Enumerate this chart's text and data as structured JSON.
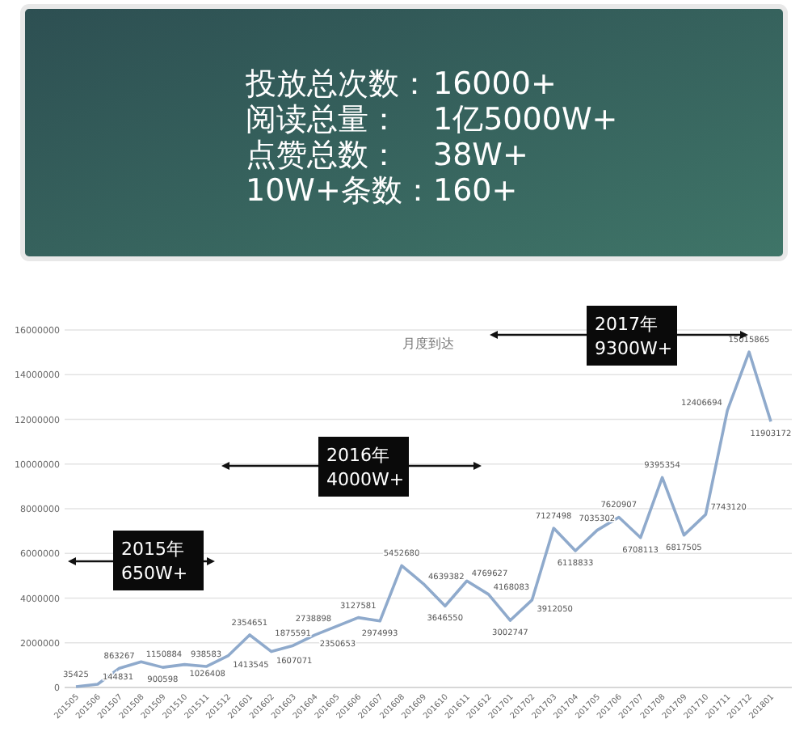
{
  "chart_data": [
    {
      "type": "other",
      "annotations": [
        "投放总次数：",
        "16000+",
        "阅读总量：",
        "1亿5000W+",
        "点赞总数：",
        "38W+",
        "10W+条数：",
        "160+"
      ]
    },
    {
      "type": "line",
      "title": "月度到达",
      "categories": [
        "201505",
        "201506",
        "201507",
        "201508",
        "201509",
        "201510",
        "201511",
        "201512",
        "201601",
        "201602",
        "201603",
        "201604",
        "201605",
        "201606",
        "201607",
        "201608",
        "201609",
        "201610",
        "201611",
        "201612",
        "201701",
        "201702",
        "201703",
        "201704",
        "201705",
        "201706",
        "201707",
        "201708",
        "201709",
        "201710",
        "201711",
        "201712",
        "201801"
      ],
      "series": [
        {
          "color": "#8faacc",
          "values": [
            35425,
            144831,
            863267,
            1150884,
            900598,
            1026408,
            938583,
            1413545,
            2354651,
            1607071,
            1875591,
            2350653,
            2738898,
            3127581,
            2974993,
            5452680,
            4639382,
            3646550,
            4769627,
            4168083,
            3002747,
            3912050,
            7127498,
            6118833,
            7035302,
            7620907,
            6708113,
            9395354,
            6817505,
            7743120,
            12406694,
            15015865,
            11903172
          ]
        }
      ],
      "ylim": [
        0,
        16000000
      ],
      "yticks": [
        0,
        2000000,
        4000000,
        6000000,
        8000000,
        10000000,
        12000000,
        14000000,
        16000000
      ],
      "grid": "y",
      "data_labels": true,
      "marker": "none",
      "annotations": [
        "2015年\n650W+",
        "2016年\n4000W+",
        "2017年\n9300W+"
      ]
    }
  ]
}
